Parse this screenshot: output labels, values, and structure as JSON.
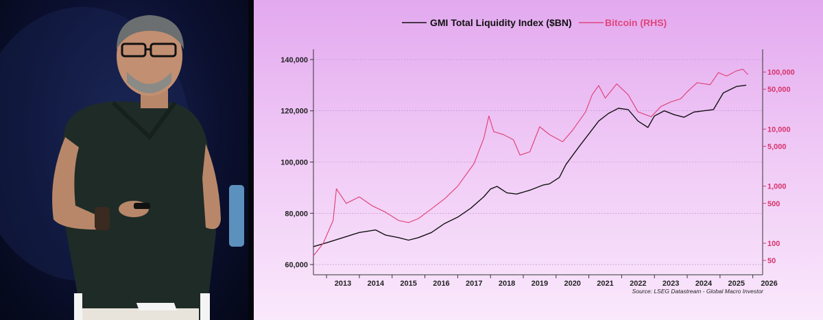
{
  "chart_data": {
    "type": "line",
    "x_categories": [
      "2013",
      "2014",
      "2015",
      "2016",
      "2017",
      "2018",
      "2019",
      "2020",
      "2021",
      "2022",
      "2023",
      "2024",
      "2025",
      "2026"
    ],
    "left_axis": {
      "ticks": [
        140000,
        120000,
        100000,
        80000,
        60000
      ],
      "tick_labels": [
        "140,000",
        "120,000",
        "100,000",
        "80,000",
        "60,000"
      ],
      "range": [
        56000,
        144000
      ]
    },
    "right_axis": {
      "scale": "log",
      "ticks": [
        100000,
        50000,
        10000,
        5000,
        1000,
        500,
        100,
        50
      ],
      "tick_labels": [
        "100,000",
        "50,000",
        "10,000",
        "5,000",
        "1,000",
        "500",
        "100",
        "50"
      ],
      "range": [
        28,
        250000
      ]
    },
    "series": [
      {
        "name": "GMI Total Liquidity Index ($BN)",
        "axis": "left",
        "color": "#111111",
        "points": [
          [
            2012.6,
            67000
          ],
          [
            2013.0,
            68500
          ],
          [
            2013.5,
            70500
          ],
          [
            2014.0,
            72500
          ],
          [
            2014.5,
            73500
          ],
          [
            2014.8,
            71500
          ],
          [
            2015.2,
            70500
          ],
          [
            2015.5,
            69500
          ],
          [
            2015.8,
            70500
          ],
          [
            2016.2,
            72500
          ],
          [
            2016.6,
            76000
          ],
          [
            2017.0,
            78500
          ],
          [
            2017.4,
            82000
          ],
          [
            2017.8,
            86500
          ],
          [
            2018.0,
            89500
          ],
          [
            2018.2,
            90500
          ],
          [
            2018.5,
            88000
          ],
          [
            2018.8,
            87500
          ],
          [
            2019.2,
            89000
          ],
          [
            2019.6,
            91000
          ],
          [
            2019.8,
            91500
          ],
          [
            2020.1,
            94000
          ],
          [
            2020.3,
            99000
          ],
          [
            2020.7,
            106000
          ],
          [
            2021.0,
            111000
          ],
          [
            2021.3,
            116000
          ],
          [
            2021.6,
            119000
          ],
          [
            2021.9,
            121000
          ],
          [
            2022.2,
            120500
          ],
          [
            2022.5,
            116000
          ],
          [
            2022.8,
            113500
          ],
          [
            2023.0,
            118000
          ],
          [
            2023.3,
            120000
          ],
          [
            2023.6,
            118500
          ],
          [
            2023.9,
            117500
          ],
          [
            2024.2,
            119500
          ],
          [
            2024.5,
            120000
          ],
          [
            2024.8,
            120500
          ],
          [
            2025.1,
            127000
          ],
          [
            2025.5,
            129500
          ],
          [
            2025.8,
            130000
          ]
        ]
      },
      {
        "name": "Bitcoin (RHS)",
        "axis": "right",
        "color": "#e0457b",
        "points": [
          [
            2012.6,
            60
          ],
          [
            2012.9,
            100
          ],
          [
            2013.2,
            250
          ],
          [
            2013.3,
            900
          ],
          [
            2013.6,
            500
          ],
          [
            2014.0,
            650
          ],
          [
            2014.4,
            450
          ],
          [
            2014.8,
            350
          ],
          [
            2015.2,
            250
          ],
          [
            2015.5,
            230
          ],
          [
            2015.8,
            270
          ],
          [
            2016.2,
            400
          ],
          [
            2016.6,
            600
          ],
          [
            2017.0,
            1000
          ],
          [
            2017.5,
            2500
          ],
          [
            2017.8,
            7000
          ],
          [
            2017.95,
            17000
          ],
          [
            2018.1,
            9000
          ],
          [
            2018.4,
            8000
          ],
          [
            2018.7,
            6500
          ],
          [
            2018.9,
            3500
          ],
          [
            2019.2,
            4000
          ],
          [
            2019.5,
            11000
          ],
          [
            2019.8,
            8000
          ],
          [
            2020.2,
            6000
          ],
          [
            2020.5,
            9500
          ],
          [
            2020.9,
            20000
          ],
          [
            2021.1,
            40000
          ],
          [
            2021.3,
            58000
          ],
          [
            2021.5,
            35000
          ],
          [
            2021.85,
            62000
          ],
          [
            2022.2,
            40000
          ],
          [
            2022.5,
            20000
          ],
          [
            2022.9,
            16500
          ],
          [
            2023.2,
            25000
          ],
          [
            2023.5,
            30000
          ],
          [
            2023.8,
            34000
          ],
          [
            2024.0,
            45000
          ],
          [
            2024.3,
            65000
          ],
          [
            2024.7,
            60000
          ],
          [
            2024.95,
            98000
          ],
          [
            2025.2,
            85000
          ],
          [
            2025.5,
            105000
          ],
          [
            2025.7,
            112000
          ],
          [
            2025.85,
            90000
          ]
        ]
      }
    ],
    "legend_position": "top-center",
    "grid": true,
    "source": "Source: LSEG Datastream - Global Macro Investor"
  }
}
